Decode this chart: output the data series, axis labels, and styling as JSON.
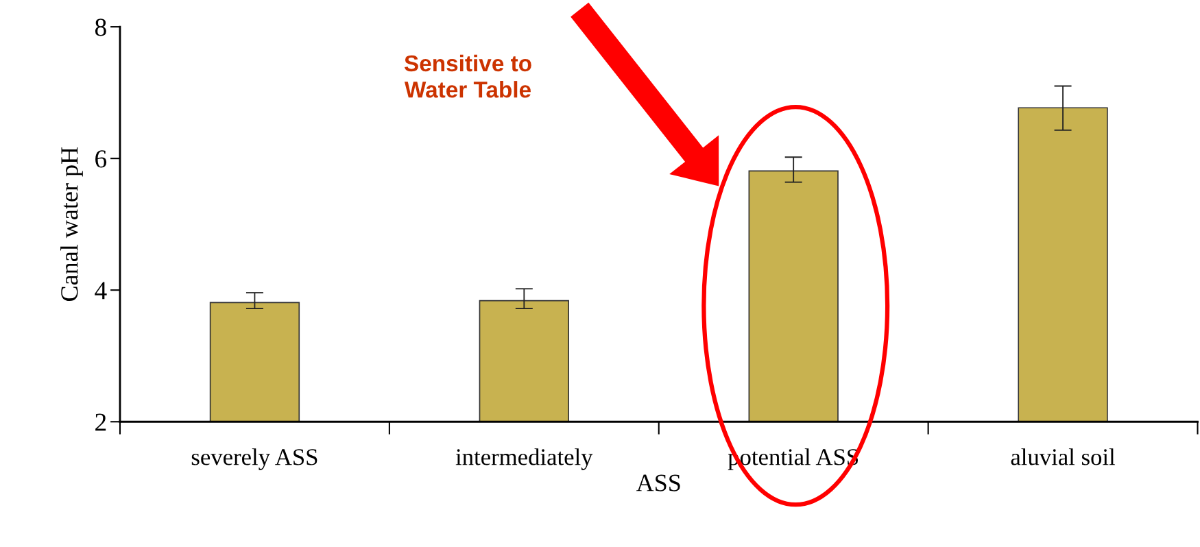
{
  "chart_data": {
    "type": "bar",
    "xlabel": "ASS",
    "ylabel": "Canal water pH",
    "categories": [
      "severely ASS",
      "intermediately",
      "potential ASS",
      "aluvial soil"
    ],
    "values": [
      3.81,
      3.84,
      5.81,
      6.77
    ],
    "errors": [
      [
        3.72,
        3.96
      ],
      [
        3.72,
        4.02
      ],
      [
        5.64,
        6.02
      ],
      [
        6.43,
        7.1
      ]
    ],
    "color": "#c8b250",
    "ylim": [
      2,
      8
    ],
    "yticks": [
      2,
      4,
      6,
      8
    ],
    "grid": false,
    "legend": false,
    "annotations": [
      "Sensitive to\nWater Table"
    ]
  }
}
